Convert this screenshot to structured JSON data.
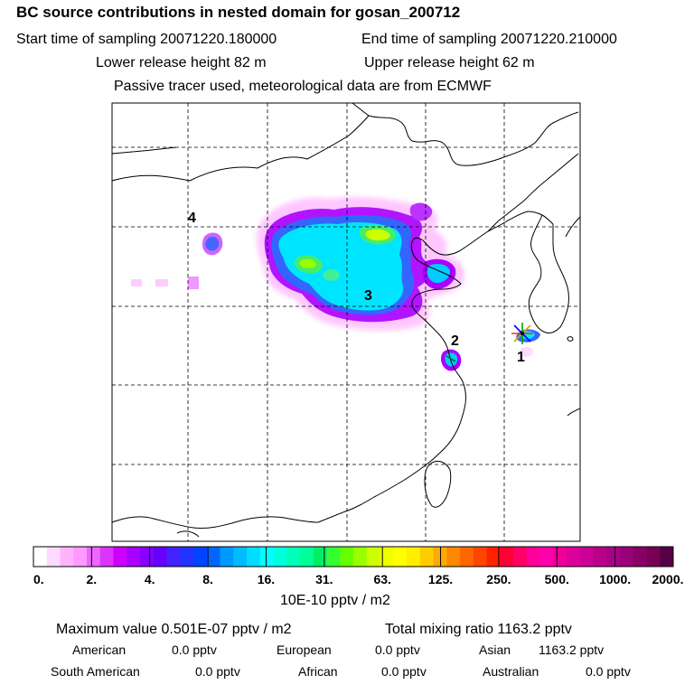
{
  "header": {
    "title": "BC  source contributions in nested domain for gosan_200712",
    "start_time": "Start time of sampling 20071220.180000",
    "end_time": "End time of sampling 20071220.210000",
    "lower_height": "Lower release height   82 m",
    "upper_height": "Upper release height   62 m",
    "tracer_info": "Passive tracer used, meteorological data are from ECMWF"
  },
  "map": {
    "source_labels": [
      "4",
      "3",
      "2",
      "1"
    ],
    "colors": {
      "low": "#ff99ff",
      "mid_purple": "#9900ff",
      "blue": "#3366ff",
      "cyan": "#00e5ff",
      "green": "#66ff66",
      "yellow": "#e5e500",
      "star": "#ff3300"
    }
  },
  "colorbar": {
    "ticks": [
      "0.",
      "2.",
      "4.",
      "8.",
      "16.",
      "31.",
      "63.",
      "125.",
      "250.",
      "500.",
      "1000.",
      "2000."
    ],
    "unit": "10E-10 pptv / m2",
    "colors": [
      "#ffffff",
      "#ffd9ff",
      "#ffb3ff",
      "#ff99ff",
      "#ee66ff",
      "#dd33ff",
      "#cc00ff",
      "#aa00ff",
      "#8800ff",
      "#6600ff",
      "#4422ff",
      "#2233ff",
      "#0044ff",
      "#0066ff",
      "#0099ff",
      "#00bbff",
      "#00ddff",
      "#00ffff",
      "#00ffdd",
      "#00ffbb",
      "#00ff99",
      "#00ee66",
      "#33ff33",
      "#66ff00",
      "#99ff00",
      "#ccff00",
      "#eeff00",
      "#ffff00",
      "#ffee00",
      "#ffcc00",
      "#ffaa00",
      "#ff8800",
      "#ff6600",
      "#ff4400",
      "#ff2200",
      "#ff0033",
      "#ff0066",
      "#ff0099",
      "#ff00aa",
      "#ee0099",
      "#dd0099",
      "#cc0099",
      "#bb0088",
      "#aa0088",
      "#990077",
      "#880066",
      "#770055",
      "#550044"
    ]
  },
  "stats": {
    "max_label": "Maximum value  0.501E-07 pptv / m2",
    "total_label": "Total mixing ratio      1163.2 pptv",
    "american_label": "American",
    "american_val": "0.0 pptv",
    "european_label": "European",
    "european_val": "0.0 pptv",
    "asian_label": "Asian",
    "asian_val": "1163.2 pptv",
    "south_american_label": "South American",
    "south_american_val": "0.0 pptv",
    "african_label": "African",
    "african_val": "0.0 pptv",
    "australian_label": "Australian",
    "australian_val": "0.0 pptv"
  }
}
